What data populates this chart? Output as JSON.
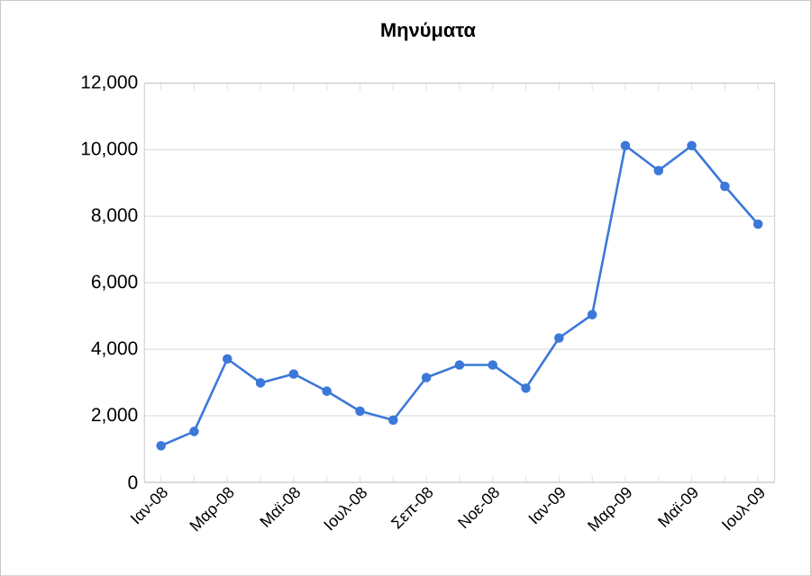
{
  "chart_data": {
    "type": "line",
    "title": "Μηνύματα",
    "categories": [
      "Ιαν-08",
      null,
      "Μαρ-08",
      null,
      "Μαϊ-08",
      null,
      "Ιουλ-08",
      null,
      "Σεπ-08",
      null,
      "Νοε-08",
      null,
      "Ιαν-09",
      null,
      "Μαρ-09",
      null,
      "Μαϊ-09",
      null,
      "Ιουλ-09"
    ],
    "series": [
      {
        "color": "#3c78d8",
        "values": [
          1100,
          1530,
          3710,
          2990,
          3260,
          2740,
          2140,
          1870,
          3150,
          3530,
          3530,
          2830,
          4340,
          5040,
          10120,
          9370,
          10120,
          8900,
          7760
        ]
      }
    ],
    "ylim": [
      0,
      12000
    ],
    "yticks": [
      {
        "value": 0,
        "label": "0"
      },
      {
        "value": 2000,
        "label": "2,000"
      },
      {
        "value": 4000,
        "label": "4,000"
      },
      {
        "value": 6000,
        "label": "6,000"
      },
      {
        "value": 8000,
        "label": "8,000"
      },
      {
        "value": 10000,
        "label": "10,000"
      },
      {
        "value": 12000,
        "label": "12,000"
      }
    ],
    "grid": "y",
    "marker": "circle",
    "line_style": "solid"
  }
}
